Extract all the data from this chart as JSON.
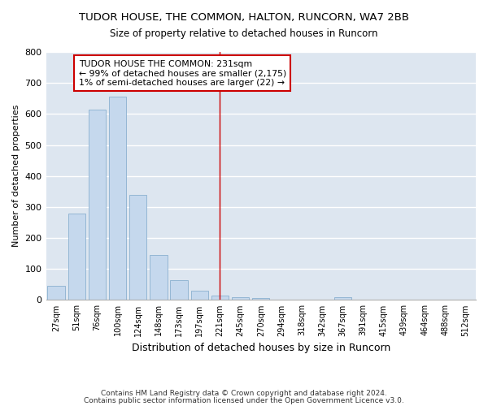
{
  "title": "TUDOR HOUSE, THE COMMON, HALTON, RUNCORN, WA7 2BB",
  "subtitle": "Size of property relative to detached houses in Runcorn",
  "xlabel": "Distribution of detached houses by size in Runcorn",
  "ylabel": "Number of detached properties",
  "bar_color": "#c5d8ed",
  "bar_edge_color": "#8ab0d0",
  "categories": [
    "27sqm",
    "51sqm",
    "76sqm",
    "100sqm",
    "124sqm",
    "148sqm",
    "173sqm",
    "197sqm",
    "221sqm",
    "245sqm",
    "270sqm",
    "294sqm",
    "318sqm",
    "342sqm",
    "367sqm",
    "391sqm",
    "415sqm",
    "439sqm",
    "464sqm",
    "488sqm",
    "512sqm"
  ],
  "values": [
    45,
    280,
    615,
    655,
    340,
    145,
    65,
    30,
    15,
    10,
    7,
    0,
    0,
    0,
    8,
    0,
    0,
    0,
    0,
    0,
    0
  ],
  "vline_x": 8,
  "vline_color": "#cc0000",
  "annotation_line1": "TUDOR HOUSE THE COMMON: 231sqm",
  "annotation_line2": "← 99% of detached houses are smaller (2,175)",
  "annotation_line3": "1% of semi-detached houses are larger (22) →",
  "annotation_box_color": "#ffffff",
  "annotation_box_edge_color": "#cc0000",
  "ylim": [
    0,
    800
  ],
  "yticks": [
    0,
    100,
    200,
    300,
    400,
    500,
    600,
    700,
    800
  ],
  "background_color": "#dde6f0",
  "footnote1": "Contains HM Land Registry data © Crown copyright and database right 2024.",
  "footnote2": "Contains public sector information licensed under the Open Government Licence v3.0."
}
